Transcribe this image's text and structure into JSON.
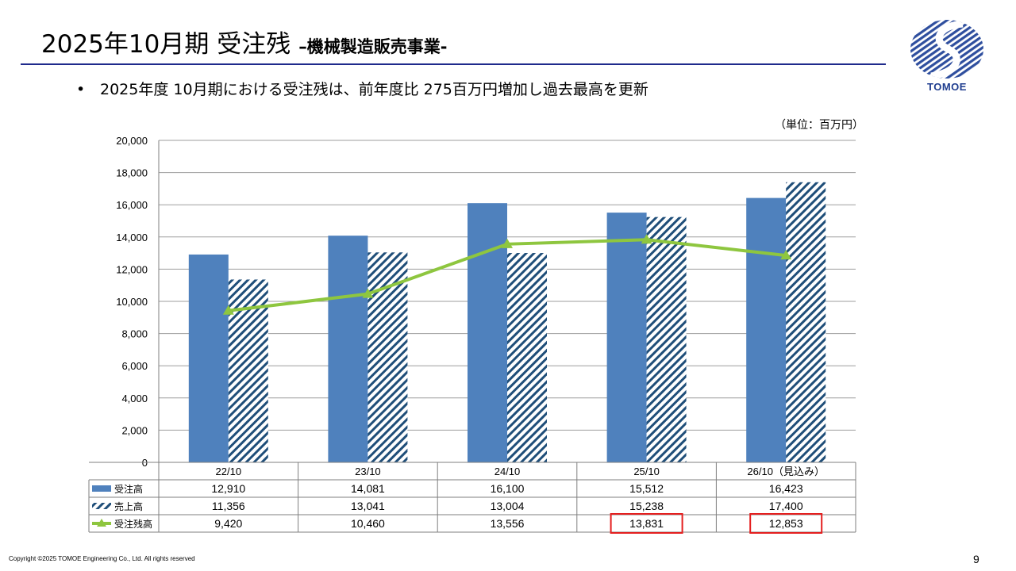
{
  "header": {
    "title": "2025年10月期 受注残",
    "subtitle": "–機械製造販売事業-",
    "logo_text": "TOMOE"
  },
  "bullet": {
    "marker": "•",
    "text": "2025年度 10月期における受注残は、前年度比 275百万円増加し過去最高を更新"
  },
  "unit_label": "（単位：百万円）",
  "chart_data": {
    "type": "bar",
    "categories": [
      "22/10",
      "23/10",
      "24/10",
      "25/10",
      "26/10（見込み）"
    ],
    "ylim": [
      0,
      20000
    ],
    "yticks": [
      "0",
      "2,000",
      "4,000",
      "6,000",
      "8,000",
      "10,000",
      "12,000",
      "14,000",
      "16,000",
      "18,000",
      "20,000"
    ],
    "grid": true,
    "series": [
      {
        "name": "受注高",
        "kind": "bar",
        "pattern": "solid",
        "color": "#4f81bd",
        "values": [
          12910,
          14081,
          16100,
          15512,
          16423
        ],
        "labels": [
          "12,910",
          "14,081",
          "16,100",
          "15,512",
          "16,423"
        ]
      },
      {
        "name": "売上高",
        "kind": "bar",
        "pattern": "diagonal-stripes",
        "color": "#1f4e79",
        "values": [
          11356,
          13041,
          13004,
          15238,
          17400
        ],
        "labels": [
          "11,356",
          "13,041",
          "13,004",
          "15,238",
          "17,400"
        ]
      },
      {
        "name": "受注残高",
        "kind": "line",
        "marker": "triangle",
        "color": "#8ec63f",
        "values": [
          9420,
          10460,
          13556,
          13831,
          12853
        ],
        "labels": [
          "9,420",
          "10,460",
          "13,556",
          "13,831",
          "12,853"
        ]
      }
    ],
    "highlight": {
      "series": "受注残高",
      "indices": [
        3,
        4
      ],
      "color": "#e41f1f"
    }
  },
  "footer": {
    "copyright": "Copyright ©2025 TOMOE Engineering Co., Ltd. All rights reserved",
    "page_number": "9"
  }
}
